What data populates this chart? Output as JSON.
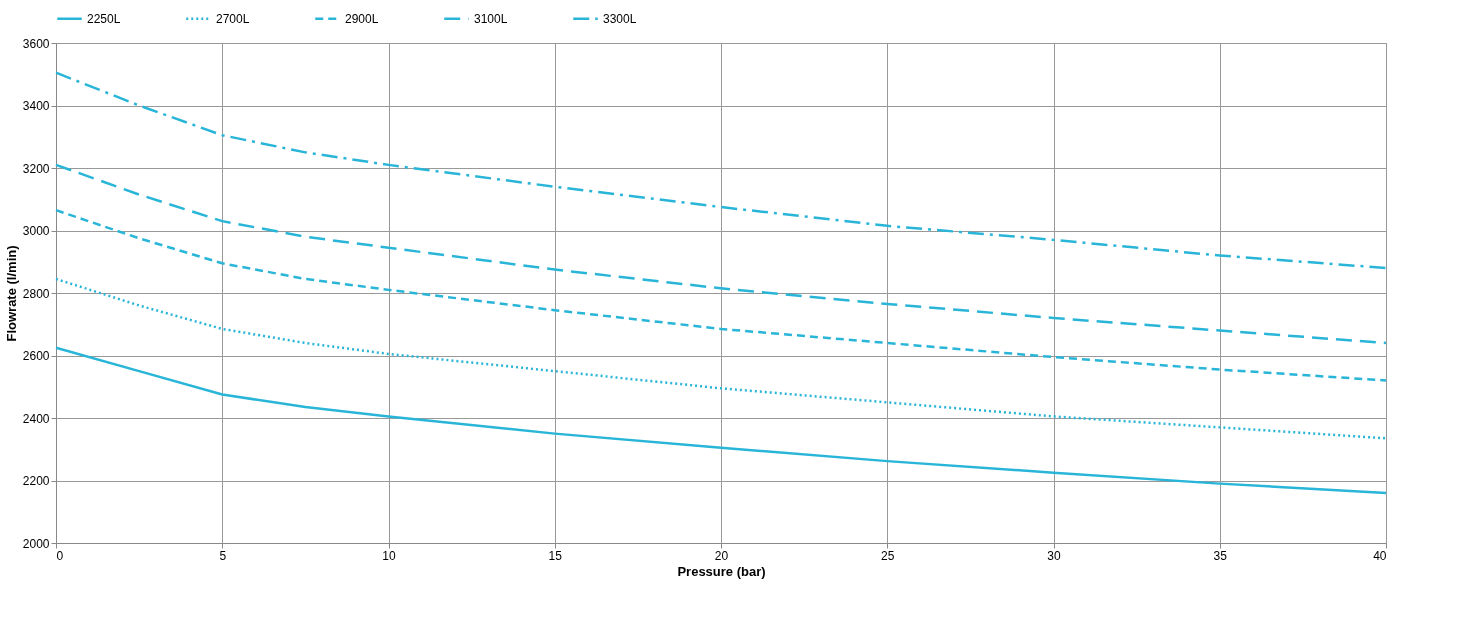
{
  "chart_data": {
    "type": "line",
    "xlabel": "Pressure (bar)",
    "ylabel": "Flowrate (l/min)",
    "x": [
      0,
      2.5,
      5,
      7.5,
      10,
      15,
      20,
      25,
      30,
      35,
      40
    ],
    "series": [
      {
        "name": "2250L",
        "color": "#29b5d8",
        "line_style": "solid",
        "values": [
          2625,
          2550,
          2475,
          2435,
          2405,
          2350,
          2305,
          2262,
          2225,
          2190,
          2160
        ]
      },
      {
        "name": "2700L",
        "color": "#29b5d8",
        "line_style": "dotted",
        "values": [
          2845,
          2760,
          2685,
          2640,
          2605,
          2550,
          2495,
          2450,
          2405,
          2370,
          2335
        ]
      },
      {
        "name": "2900L",
        "color": "#29b5d8",
        "line_style": "dashed",
        "values": [
          3065,
          2975,
          2895,
          2845,
          2810,
          2745,
          2685,
          2640,
          2595,
          2555,
          2520
        ]
      },
      {
        "name": "3100L",
        "color": "#29b5d8",
        "line_style": "dashed",
        "values": [
          3210,
          3115,
          3030,
          2980,
          2945,
          2875,
          2815,
          2765,
          2720,
          2680,
          2640
        ]
      },
      {
        "name": "3300L",
        "color": "#29b5d8",
        "line_style": "dashed",
        "values": [
          3505,
          3400,
          3305,
          3250,
          3210,
          3140,
          3075,
          3015,
          2970,
          2920,
          2880
        ]
      }
    ],
    "xlim": [
      0,
      40
    ],
    "xticks": [
      0,
      5,
      10,
      15,
      20,
      25,
      30,
      35,
      40
    ],
    "ylim": [
      2000,
      3600
    ],
    "yticks": [
      2000,
      2200,
      2400,
      2600,
      2800,
      3000,
      3200,
      3400,
      3600
    ],
    "grid": true,
    "legend": "top",
    "marker": "none"
  }
}
